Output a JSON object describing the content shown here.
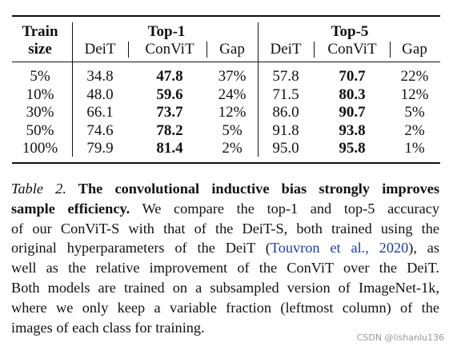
{
  "table": {
    "header": {
      "train": [
        "Train",
        "size"
      ],
      "groups": [
        "Top-1",
        "Top-5"
      ],
      "columns": [
        "DeiT",
        "ConViT",
        "Gap",
        "DeiT",
        "ConViT",
        "Gap"
      ]
    },
    "rows": [
      [
        "5%",
        "34.8",
        "47.8",
        "37%",
        "57.8",
        "70.7",
        "22%"
      ],
      [
        "10%",
        "48.0",
        "59.6",
        "24%",
        "71.5",
        "80.3",
        "12%"
      ],
      [
        "30%",
        "66.1",
        "73.7",
        "12%",
        "86.0",
        "90.7",
        "5%"
      ],
      [
        "50%",
        "74.6",
        "78.2",
        "5%",
        "91.8",
        "93.8",
        "2%"
      ],
      [
        "100%",
        "79.9",
        "81.4",
        "2%",
        "95.0",
        "95.8",
        "1%"
      ]
    ]
  },
  "caption": {
    "lines": [
      [
        {
          "text": "Table 2.",
          "style": "italic"
        },
        {
          "text": " The convolutional inductive bias strongly improves",
          "style": "bold"
        }
      ],
      [
        {
          "text": "sample efficiency.",
          "style": "bold"
        },
        {
          "text": "  We compare the top-1 and top-5 accuracy",
          "style": "plain"
        }
      ],
      [
        {
          "text": "of our ConViT-S with that of the DeiT-S, both trained using the",
          "style": "plain"
        }
      ],
      [
        {
          "text": "original hyperparameters of the DeiT (",
          "style": "plain"
        },
        {
          "text": "Touvron et al., 2020",
          "style": "link"
        },
        {
          "text": "), as",
          "style": "plain"
        }
      ],
      [
        {
          "text": "well as the relative improvement of the ConViT over the DeiT.",
          "style": "plain"
        }
      ],
      [
        {
          "text": "Both models are trained on a subsampled version of ImageNet-1k,",
          "style": "plain"
        }
      ],
      [
        {
          "text": "where we only keep a variable fraction (leftmost column) of the",
          "style": "plain"
        }
      ],
      [
        {
          "text": "images of each class for training.",
          "style": "plain"
        }
      ]
    ]
  },
  "watermark": "CSDN @lishanlu136"
}
